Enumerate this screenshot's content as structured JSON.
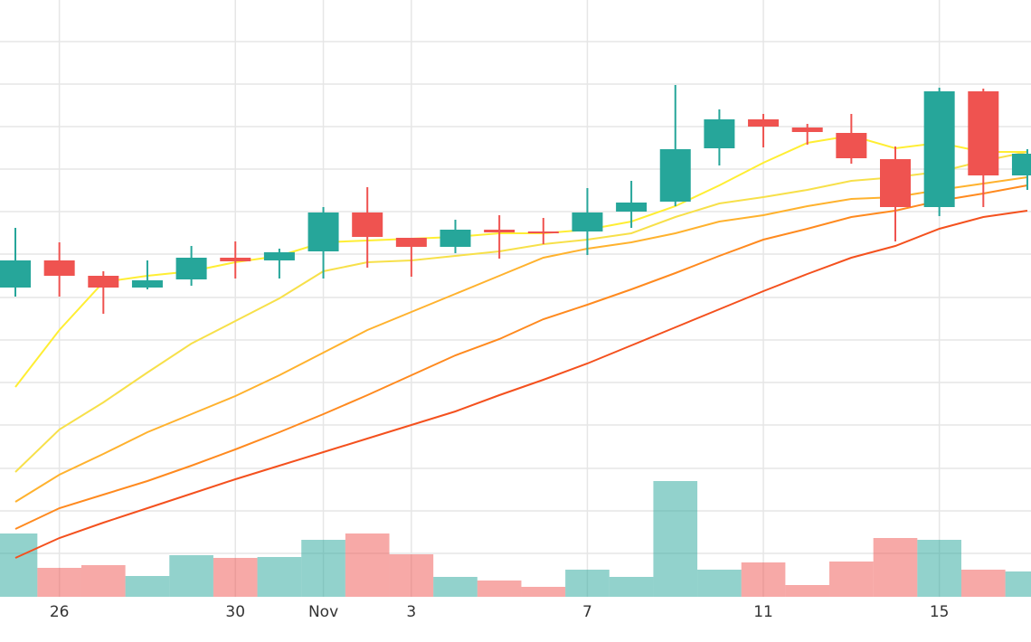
{
  "chart_data": {
    "type": "candlestick",
    "categories": [
      null,
      "26",
      null,
      null,
      null,
      "30",
      null,
      "Nov",
      null,
      "3",
      null,
      null,
      null,
      "7",
      null,
      null,
      null,
      "11",
      null,
      null,
      null,
      "15",
      null,
      null
    ],
    "open": [
      342,
      372,
      355,
      342,
      351,
      375,
      372,
      382,
      425,
      397,
      387,
      406,
      404,
      404,
      426,
      437,
      496,
      528,
      519,
      513,
      484,
      431,
      559,
      466
    ],
    "high": [
      408,
      392,
      360,
      372,
      388,
      393,
      385,
      431,
      453,
      397,
      417,
      422,
      419,
      452,
      460,
      566,
      539,
      534,
      523,
      534,
      498,
      563,
      562,
      495
    ],
    "low": [
      332,
      332,
      313,
      340,
      344,
      352,
      352,
      352,
      364,
      354,
      380,
      374,
      390,
      378,
      408,
      432,
      477,
      497,
      500,
      479,
      393,
      421,
      431,
      450
    ],
    "close": [
      372,
      355,
      342,
      350,
      375,
      371,
      381,
      425,
      398,
      387,
      406,
      403,
      402,
      425,
      436,
      495,
      528,
      520,
      514,
      485,
      431,
      559,
      466,
      490
    ],
    "volume": [
      70,
      32,
      35,
      23,
      46,
      43,
      44,
      63,
      70,
      47,
      22,
      18,
      11,
      30,
      22,
      128,
      30,
      38,
      13,
      39,
      65,
      63,
      30,
      28
    ],
    "up_color": "#26a69a",
    "down_color": "#ef5350",
    "lines": [
      {
        "color": "#ffee33",
        "values": [
          232,
          295,
          348,
          355,
          360,
          370,
          377,
          392,
          394,
          396,
          398,
          402,
          402,
          406,
          415,
          432,
          455,
          480,
          502,
          510,
          496,
          502,
          492,
          492
        ]
      },
      {
        "color": "#f7e04a",
        "values": [
          138,
          185,
          215,
          248,
          280,
          305,
          330,
          360,
          370,
          372,
          377,
          382,
          390,
          395,
          402,
          420,
          435,
          442,
          450,
          460,
          464,
          470,
          482,
          492
        ]
      },
      {
        "color": "#ffb22e",
        "values": [
          105,
          135,
          158,
          182,
          202,
          222,
          245,
          270,
          295,
          315,
          335,
          355,
          375,
          385,
          392,
          402,
          415,
          422,
          432,
          440,
          442,
          450,
          457,
          464
        ]
      },
      {
        "color": "#ff8a1f",
        "values": [
          75,
          98,
          113,
          128,
          145,
          163,
          182,
          202,
          223,
          245,
          267,
          285,
          307,
          323,
          340,
          358,
          377,
          395,
          407,
          420,
          427,
          438,
          446,
          455
        ]
      },
      {
        "color": "#f4511e",
        "values": [
          43,
          65,
          82,
          98,
          114,
          130,
          145,
          160,
          175,
          190,
          205,
          223,
          240,
          258,
          278,
          298,
          318,
          338,
          357,
          375,
          388,
          407,
          420,
          427
        ]
      }
    ],
    "ylim": [
      0,
      660
    ],
    "yticks": [
      48,
      95,
      142,
      190,
      237,
      284,
      331,
      379,
      426,
      473,
      520,
      567,
      614
    ],
    "y2lim": [
      0,
      660
    ],
    "grid": true
  }
}
